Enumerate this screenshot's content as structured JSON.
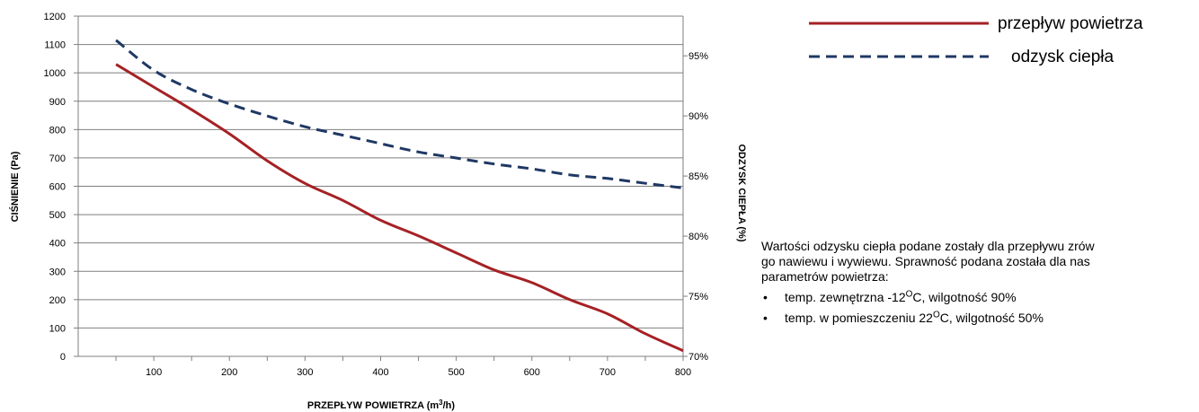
{
  "chart_data": {
    "type": "line",
    "xlabel_main": "PRZEPŁYW POWIETRZA (m",
    "xlabel_sup": "3",
    "xlabel_end": "/h)",
    "ylabel": "CIŚNIENIE (Pa)",
    "y2label": "ODZYSK CIEPŁA (%)",
    "xlim": [
      0,
      800
    ],
    "ylim": [
      0,
      1200
    ],
    "y2lim": [
      70,
      98.3
    ],
    "x_ticks": [
      100,
      200,
      300,
      400,
      500,
      600,
      700,
      800
    ],
    "y_ticks": [
      0,
      100,
      200,
      300,
      400,
      500,
      600,
      700,
      800,
      900,
      1000,
      1100,
      1200
    ],
    "y2_ticks": [
      70,
      75,
      80,
      85,
      90,
      95
    ],
    "y2_tick_labels": [
      "70%",
      "75%",
      "80%",
      "85%",
      "90%",
      "95%"
    ],
    "grid": "horizontal",
    "legend_position": "top-right",
    "series": [
      {
        "name": "przepływ powietrza",
        "axis": "left",
        "color": "#a52125",
        "style": "solid",
        "x": [
          50,
          100,
          150,
          200,
          250,
          300,
          350,
          400,
          450,
          500,
          550,
          600,
          650,
          700,
          750,
          800
        ],
        "y": [
          1030,
          950,
          870,
          785,
          690,
          610,
          550,
          480,
          425,
          365,
          305,
          260,
          200,
          150,
          80,
          20
        ]
      },
      {
        "name": "odzysk ciepła",
        "axis": "right",
        "color": "#1f3864",
        "style": "dashed",
        "x": [
          50,
          100,
          150,
          200,
          250,
          300,
          350,
          400,
          450,
          500,
          550,
          600,
          650,
          700,
          750,
          800
        ],
        "y": [
          96.3,
          93.8,
          92.2,
          91.0,
          90.0,
          89.1,
          88.4,
          87.7,
          87.0,
          86.5,
          86.0,
          85.6,
          85.1,
          84.8,
          84.4,
          84.0
        ]
      }
    ]
  },
  "note": {
    "text": "Wartości odzysku ciepła podane zostały dla przepływu zrównoważonego nawiewu i wywiewu. Sprawność podana została dla następujących parametrów powietrza:",
    "line1": "Wartości odzysku ciepła podane zostały dla przepływu zrów",
    "line2": "go nawiewu i wywiewu. Sprawność podana została dla nas",
    "line3": "parametrów powietrza:",
    "bullets": [
      {
        "pre": "temp. zewnętrzna -12",
        "sup": "O",
        "post": "C, wilgotność 90%"
      },
      {
        "pre": "temp. w pomieszczeniu 22",
        "sup": "O",
        "post": "C, wilgotność 50%"
      }
    ]
  }
}
